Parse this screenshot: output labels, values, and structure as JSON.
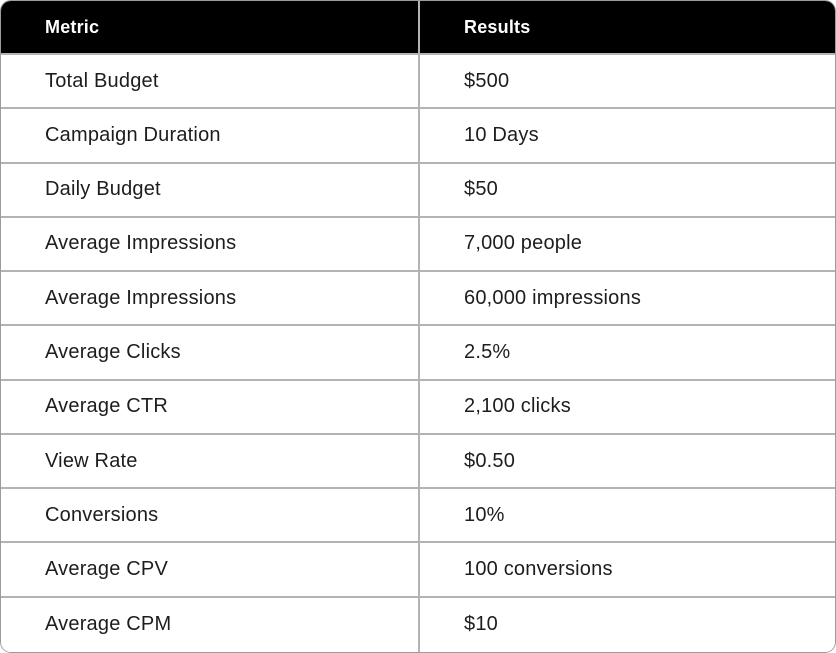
{
  "chart_data": {
    "type": "table",
    "columns": [
      "Metric",
      "Results"
    ],
    "rows": [
      [
        "Total Budget",
        "$500"
      ],
      [
        "Campaign Duration",
        "10 Days"
      ],
      [
        "Daily Budget",
        "$50"
      ],
      [
        "Average Impressions",
        "7,000 people"
      ],
      [
        "Average Impressions",
        "60,000 impressions"
      ],
      [
        "Average Clicks",
        "2.5%"
      ],
      [
        "Average CTR",
        "2,100 clicks"
      ],
      [
        "View Rate",
        "$0.50"
      ],
      [
        "Conversions",
        "10%"
      ],
      [
        "Average CPV",
        "100 conversions"
      ],
      [
        "Average CPM",
        "$10"
      ]
    ]
  },
  "colors": {
    "header_bg": "#000000",
    "header_text": "#ffffff",
    "grid_line": "#b3b3b3",
    "outer_border": "#9c9c9c",
    "row_bg": "#ffffff",
    "body_text": "#1d1d1d"
  }
}
